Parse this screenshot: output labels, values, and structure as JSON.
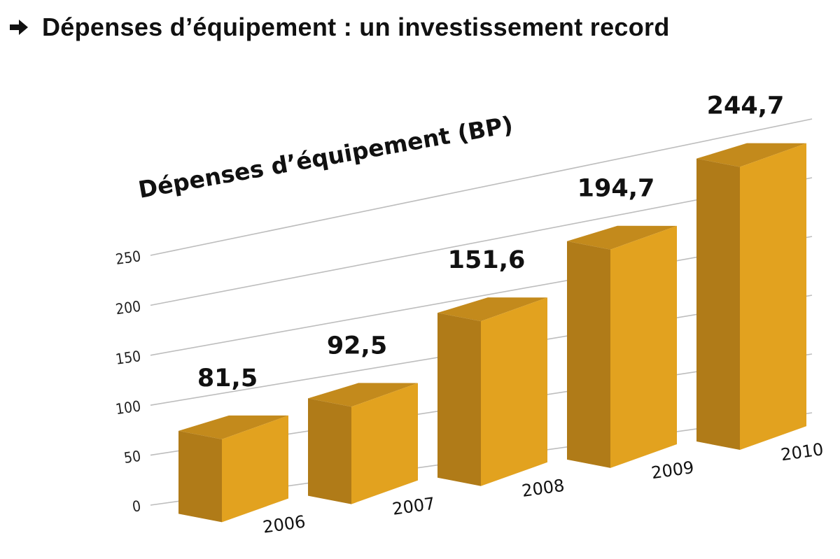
{
  "heading": {
    "arrow_icon": "right-arrow-icon",
    "text": "Dépenses d’équipement : un investissement record"
  },
  "chart_data": {
    "type": "bar",
    "title": "Dépenses d’équipement (BP)",
    "categories": [
      "2006",
      "2007",
      "2008",
      "2009",
      "2010"
    ],
    "values": [
      81.5,
      92.5,
      151.6,
      194.7,
      244.7
    ],
    "value_labels": [
      "81,5",
      "92,5",
      "151,6",
      "194,7",
      "244,7"
    ],
    "yticks": [
      "0",
      "50",
      "100",
      "150",
      "200",
      "250"
    ],
    "ylim": [
      0,
      250
    ],
    "xlabel": "",
    "ylabel": "",
    "grid": true,
    "style": "3d-perspective",
    "colors": {
      "front": "#E2A21F",
      "side": "#B07B18",
      "top": "#C38A1C",
      "grid": "#BDBDBD"
    }
  }
}
